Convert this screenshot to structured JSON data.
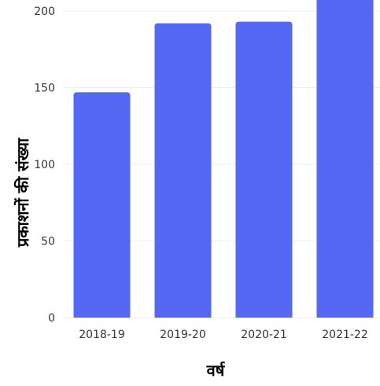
{
  "chart_data": {
    "type": "bar",
    "categories": [
      "2018-19",
      "2019-20",
      "2020-21",
      "2021-22"
    ],
    "series": [
      {
        "values": [
          147,
          192,
          193,
          215
        ]
      }
    ],
    "xlabel": "वर्ष",
    "ylabel": "प्रकाशनों की संख्या",
    "ylim": [
      0,
      200
    ],
    "yticks": [
      0,
      50,
      100,
      150,
      200
    ],
    "grid": true,
    "bar_color": "#5468f4",
    "grid_color": "#eeeeee"
  }
}
